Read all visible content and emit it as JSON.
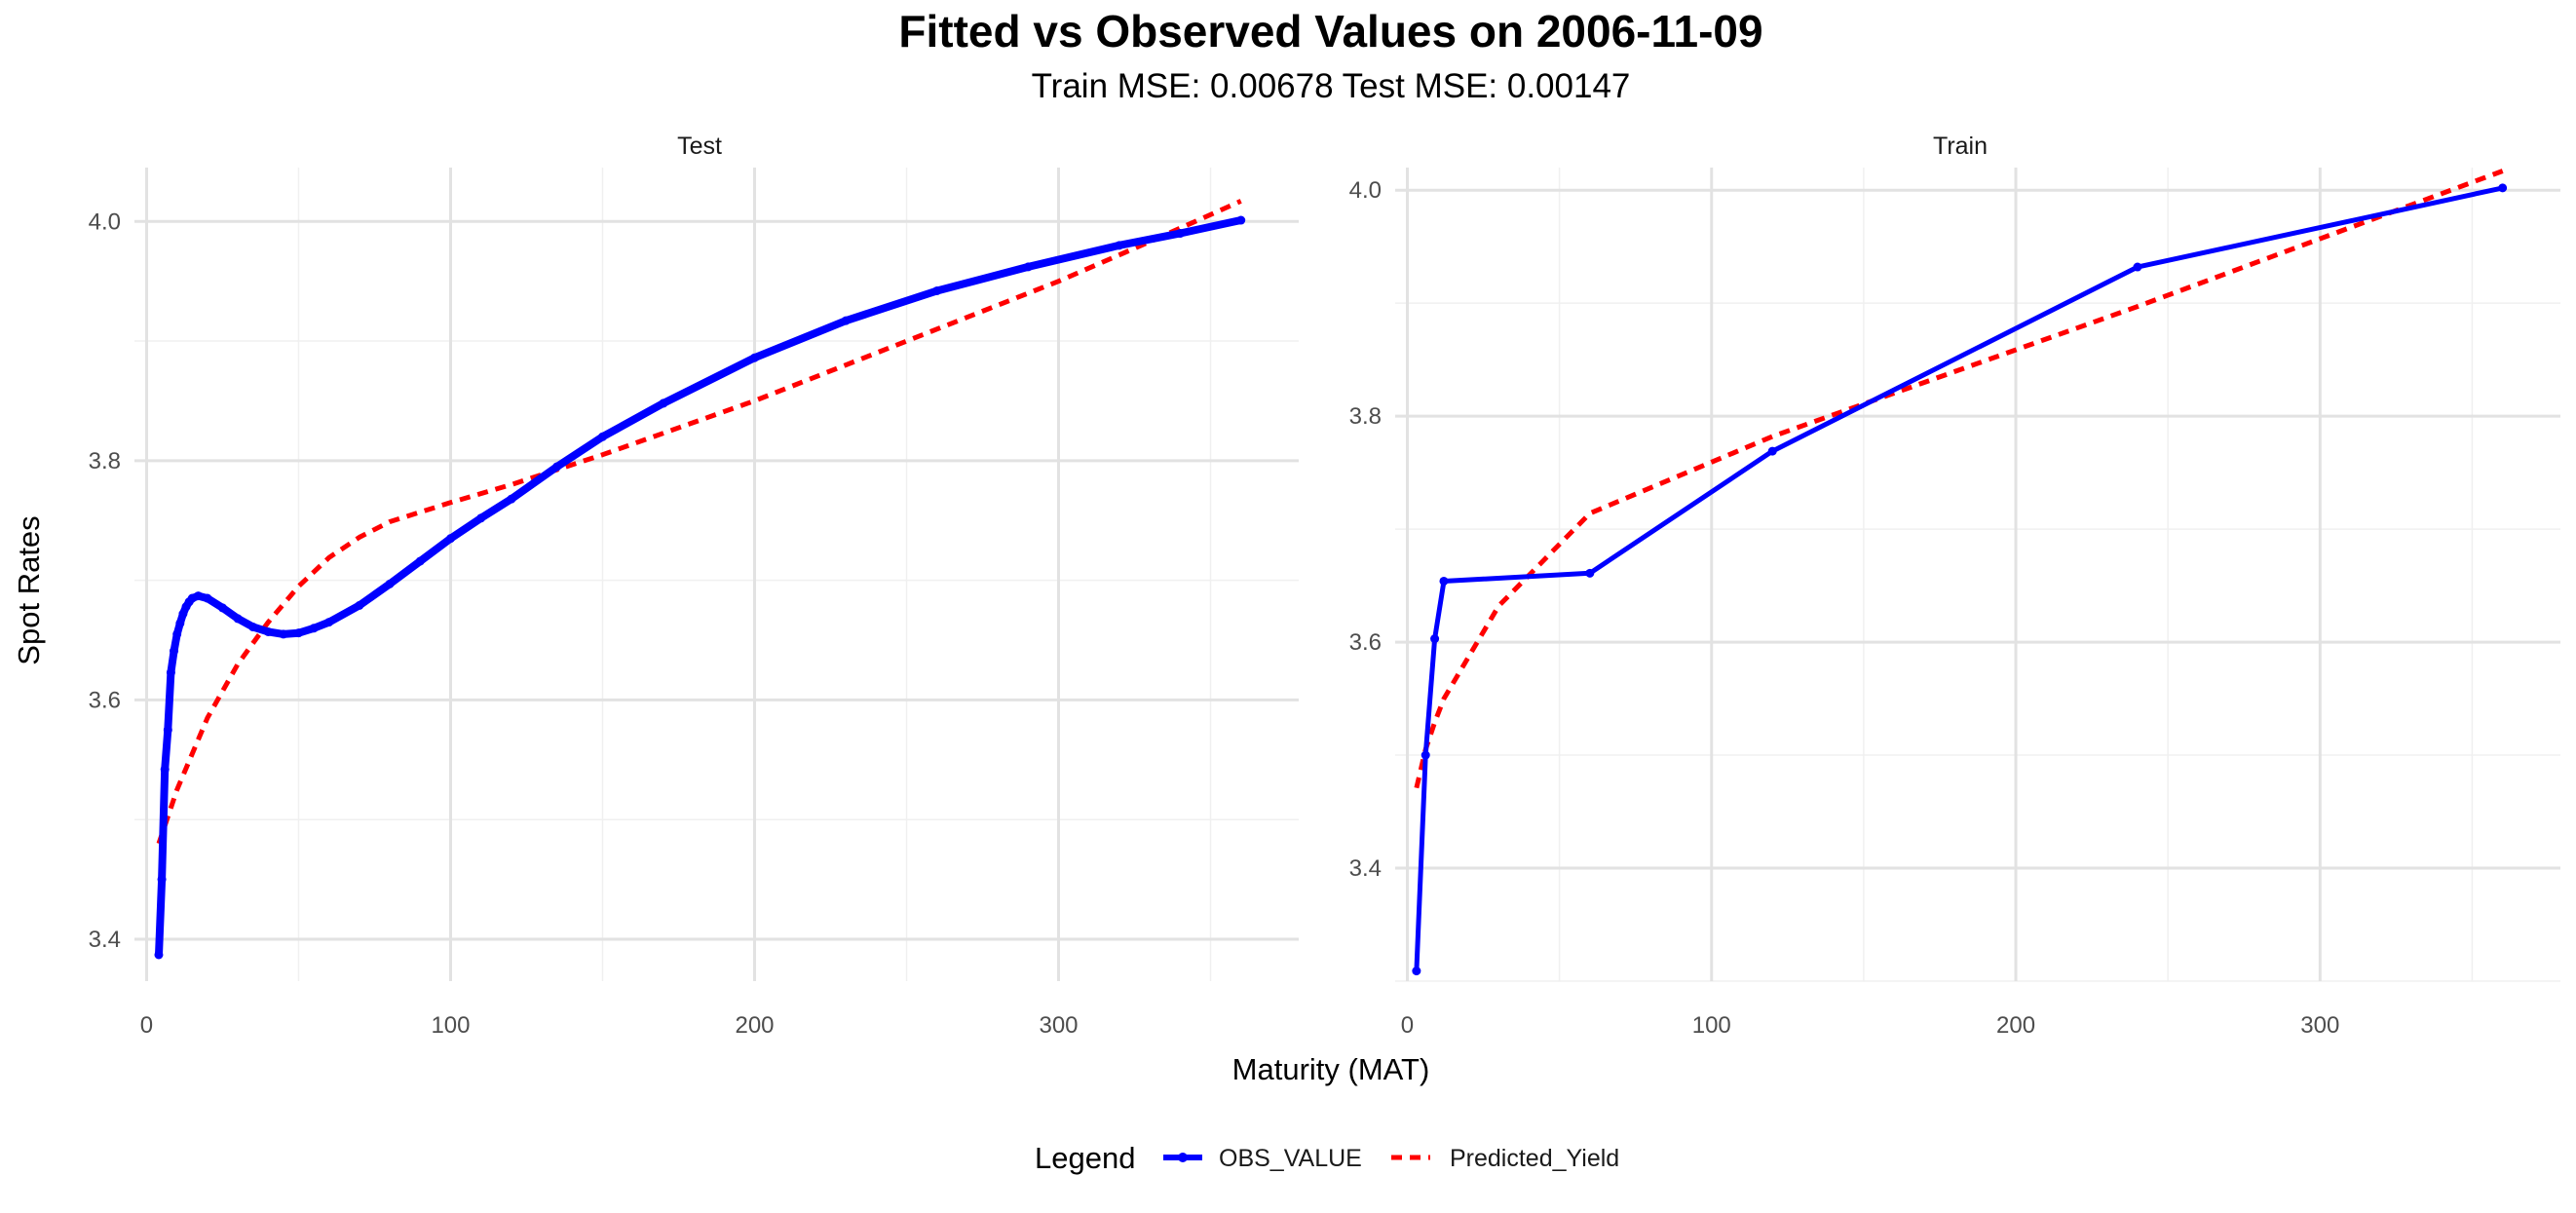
{
  "chart_data": {
    "type": "line",
    "title": "Fitted vs Observed Values on 2006-11-09",
    "subtitle": "Train MSE: 0.00678 Test MSE: 0.00147",
    "xlabel": "Maturity (MAT)",
    "ylabel": "Spot Rates",
    "legend": {
      "title": "Legend",
      "position": "bottom",
      "entries": [
        {
          "name": "OBS_VALUE",
          "color": "#0000ff",
          "style": "solid with points"
        },
        {
          "name": "Predicted_Yield",
          "color": "#ff0000",
          "style": "dashed"
        }
      ]
    },
    "grid": true,
    "panels": [
      {
        "strip": "Test",
        "xlim": [
          -4,
          379
        ],
        "ylim": [
          3.365,
          4.045
        ],
        "x_ticks": [
          0,
          100,
          200,
          300
        ],
        "x_tick_labels": [
          "0",
          "100",
          "200",
          "300"
        ],
        "y_ticks": [
          3.4,
          3.6,
          3.8,
          4.0
        ],
        "y_tick_labels": [
          "3.4",
          "3.6",
          "3.8",
          "4.0"
        ],
        "series": [
          {
            "name": "OBS_VALUE",
            "points": true,
            "line_width": 8,
            "x": [
              4,
              5,
              6,
              7,
              8,
              9,
              10,
              11,
              12,
              13,
              14,
              15,
              17,
              20,
              25,
              30,
              35,
              40,
              45,
              50,
              55,
              60,
              70,
              80,
              90,
              100,
              110,
              120,
              135,
              150,
              170,
              200,
              230,
              260,
              290,
              320,
              340,
              360
            ],
            "values": [
              3.387,
              3.45,
              3.542,
              3.575,
              3.623,
              3.641,
              3.655,
              3.664,
              3.672,
              3.678,
              3.682,
              3.685,
              3.687,
              3.685,
              3.677,
              3.668,
              3.661,
              3.657,
              3.655,
              3.656,
              3.66,
              3.665,
              3.679,
              3.697,
              3.716,
              3.735,
              3.752,
              3.768,
              3.795,
              3.82,
              3.848,
              3.886,
              3.917,
              3.942,
              3.962,
              3.98,
              3.99,
              4.001
            ]
          },
          {
            "name": "Predicted_Yield",
            "points": false,
            "line_width": 5,
            "x": [
              4,
              10,
              20,
              30,
              40,
              50,
              60,
              70,
              80,
              100,
              120,
              150,
              200,
              250,
              300,
              330,
              360
            ],
            "values": [
              3.48,
              3.525,
              3.585,
              3.63,
              3.665,
              3.695,
              3.719,
              3.736,
              3.749,
              3.765,
              3.78,
              3.805,
              3.85,
              3.9,
              3.95,
              3.983,
              4.017
            ]
          }
        ]
      },
      {
        "strip": "Train",
        "xlim": [
          -4,
          379
        ],
        "ylim": [
          3.3,
          4.02
        ],
        "x_ticks": [
          0,
          100,
          200,
          300
        ],
        "x_tick_labels": [
          "0",
          "100",
          "200",
          "300"
        ],
        "y_ticks": [
          3.4,
          3.6,
          3.8,
          4.0
        ],
        "y_tick_labels": [
          "3.4",
          "3.6",
          "3.8",
          "4.0"
        ],
        "series": [
          {
            "name": "OBS_VALUE",
            "points": true,
            "line_width": 5,
            "x": [
              3,
              6,
              9,
              12,
              60,
              120,
              240,
              360
            ],
            "values": [
              3.309,
              3.5,
              3.603,
              3.654,
              3.661,
              3.769,
              3.932,
              4.002
            ]
          },
          {
            "name": "Predicted_Yield",
            "points": false,
            "line_width": 5,
            "x": [
              3,
              6,
              9,
              12,
              30,
              60,
              120,
              240,
              360
            ],
            "values": [
              3.471,
              3.505,
              3.529,
              3.55,
              3.632,
              3.714,
              3.782,
              3.897,
              4.017
            ]
          }
        ]
      }
    ]
  }
}
